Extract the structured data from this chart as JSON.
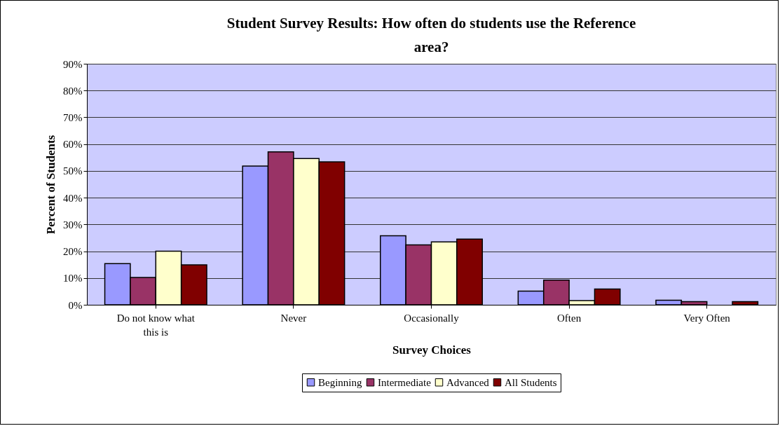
{
  "chart_data": {
    "type": "bar",
    "title": "Student Survey Results: How often do students use the Reference area?",
    "xlabel": "Survey Choices",
    "ylabel": "Percent of Students",
    "categories": [
      "Do not know what this is",
      "Never",
      "Occasionally",
      "Often",
      "Very Often"
    ],
    "series": [
      {
        "name": "Beginning",
        "color": "#9999ff",
        "values": [
          15.4,
          51.8,
          25.8,
          5.1,
          1.7
        ]
      },
      {
        "name": "Intermediate",
        "color": "#993366",
        "values": [
          10.2,
          57.1,
          22.4,
          9.2,
          1.2
        ]
      },
      {
        "name": "Advanced",
        "color": "#ffffcc",
        "values": [
          20.0,
          54.6,
          23.5,
          1.6,
          0
        ]
      },
      {
        "name": "All Students",
        "color": "#800000",
        "values": [
          14.9,
          53.4,
          24.5,
          5.9,
          1.2
        ]
      }
    ],
    "ylim": [
      0,
      90
    ],
    "yticks": [
      {
        "value": 0,
        "label": "0%"
      },
      {
        "value": 10,
        "label": "10%"
      },
      {
        "value": 20,
        "label": "20%"
      },
      {
        "value": 30,
        "label": "30%"
      },
      {
        "value": 40,
        "label": "40%"
      },
      {
        "value": 50,
        "label": "50%"
      },
      {
        "value": 60,
        "label": "60%"
      },
      {
        "value": 70,
        "label": "70%"
      },
      {
        "value": 80,
        "label": "80%"
      },
      {
        "value": 90,
        "label": "90%"
      }
    ],
    "grid": "y",
    "legend": "bottom"
  }
}
